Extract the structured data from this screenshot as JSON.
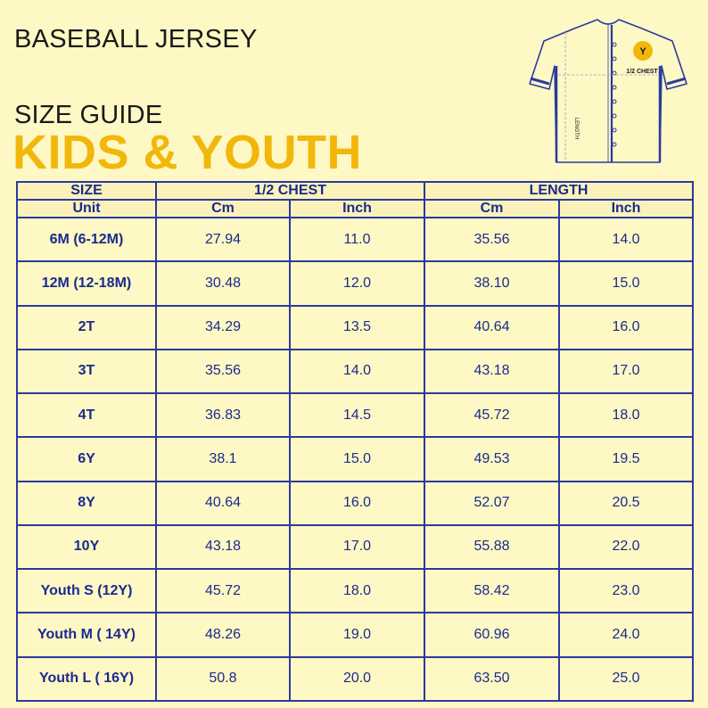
{
  "header": {
    "title": "BASEBALL JERSEY",
    "subtitle": "SIZE GUIDE",
    "headline": "KIDS & YOUTH"
  },
  "jersey": {
    "logo_text": "Y",
    "chest_label": "1/2 CHEST",
    "length_label": "LENGTH"
  },
  "colors": {
    "background": "#fdf8c4",
    "accent": "#f2b70b",
    "table_text": "#1b2a8f",
    "table_border": "#2b3a9e"
  },
  "table": {
    "col_size": "SIZE",
    "col_chest": "1/2 CHEST",
    "col_length": "LENGTH",
    "unit_label": "Unit",
    "units": [
      "Cm",
      "Inch",
      "Cm",
      "Inch"
    ],
    "rows": [
      {
        "size": "6M (6-12M)",
        "chest_cm": "27.94",
        "chest_in": "11.0",
        "length_cm": "35.56",
        "length_in": "14.0"
      },
      {
        "size": "12M (12-18M)",
        "chest_cm": "30.48",
        "chest_in": "12.0",
        "length_cm": "38.10",
        "length_in": "15.0"
      },
      {
        "size": "2T",
        "chest_cm": "34.29",
        "chest_in": "13.5",
        "length_cm": "40.64",
        "length_in": "16.0"
      },
      {
        "size": "3T",
        "chest_cm": "35.56",
        "chest_in": "14.0",
        "length_cm": "43.18",
        "length_in": "17.0"
      },
      {
        "size": "4T",
        "chest_cm": "36.83",
        "chest_in": "14.5",
        "length_cm": "45.72",
        "length_in": "18.0"
      },
      {
        "size": "6Y",
        "chest_cm": "38.1",
        "chest_in": "15.0",
        "length_cm": "49.53",
        "length_in": "19.5"
      },
      {
        "size": "8Y",
        "chest_cm": "40.64",
        "chest_in": "16.0",
        "length_cm": "52.07",
        "length_in": "20.5"
      },
      {
        "size": "10Y",
        "chest_cm": "43.18",
        "chest_in": "17.0",
        "length_cm": "55.88",
        "length_in": "22.0"
      },
      {
        "size": "Youth S (12Y)",
        "chest_cm": "45.72",
        "chest_in": "18.0",
        "length_cm": "58.42",
        "length_in": "23.0"
      },
      {
        "size": "Youth M ( 14Y)",
        "chest_cm": "48.26",
        "chest_in": "19.0",
        "length_cm": "60.96",
        "length_in": "24.0"
      },
      {
        "size": "Youth L ( 16Y)",
        "chest_cm": "50.8",
        "chest_in": "20.0",
        "length_cm": "63.50",
        "length_in": "25.0"
      }
    ]
  }
}
